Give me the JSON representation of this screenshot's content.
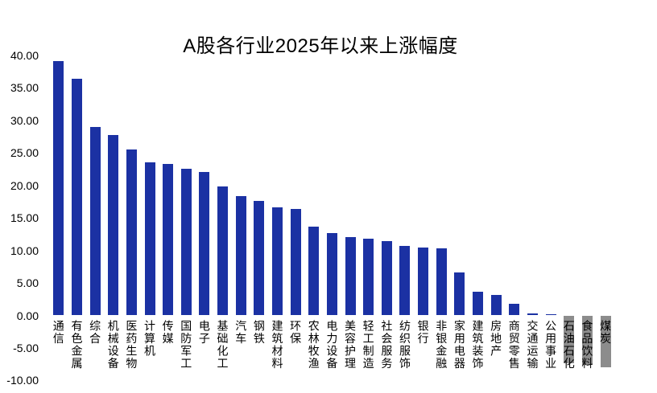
{
  "page": {
    "background": "#ffffff"
  },
  "chart_data": {
    "type": "bar",
    "title": "A股各行业2025年以来上涨幅度",
    "categories": [
      "通信",
      "有色金属",
      "综合",
      "机械设备",
      "医药生物",
      "计算机",
      "传媒",
      "国防军工",
      "电子",
      "基础化工",
      "汽车",
      "钢铁",
      "建筑材料",
      "环保",
      "农林牧渔",
      "电力设备",
      "美容护理",
      "轻工制造",
      "社会服务",
      "纺织服饰",
      "银行",
      "非银金融",
      "家用电器",
      "建筑装饰",
      "房地产",
      "商贸零售",
      "交通运输",
      "公用事业",
      "石油石化",
      "食品饮料",
      "煤炭"
    ],
    "values": [
      39.1,
      36.4,
      29.0,
      27.7,
      25.5,
      23.5,
      23.3,
      22.6,
      22.1,
      19.8,
      18.4,
      17.6,
      16.6,
      16.4,
      13.7,
      12.7,
      12.0,
      11.8,
      11.4,
      10.7,
      10.5,
      10.3,
      6.6,
      3.7,
      3.1,
      1.8,
      0.3,
      0.2,
      -7.4,
      -7.6,
      -8.0
    ],
    "xlabel": "",
    "ylabel": "",
    "ylim": [
      -10,
      40
    ],
    "yticks": [
      40,
      35,
      30,
      25,
      20,
      15,
      10,
      5,
      0,
      -5,
      -10
    ],
    "ytick_labels": [
      "40.00",
      "35.00",
      "30.00",
      "25.00",
      "20.00",
      "15.00",
      "10.00",
      "5.00",
      "0.00",
      "-5.00",
      "-10.00"
    ],
    "grid": false,
    "legend": false,
    "bar_color_positive": "#1B31A3",
    "bar_color_negative": "#8C8C8C",
    "text_color": "#000000"
  }
}
